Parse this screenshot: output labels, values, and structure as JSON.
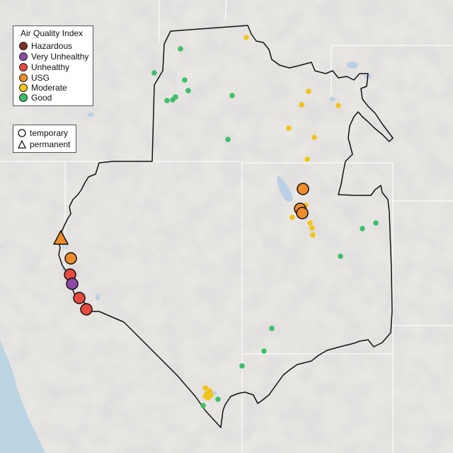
{
  "legend": {
    "title": "Air Quality Index",
    "categories": [
      {
        "label": "Hazardous",
        "color": "#7e2f25"
      },
      {
        "label": "Very Unhealthy",
        "color": "#8e4aa8"
      },
      {
        "label": "Unhealthy",
        "color": "#e8493e"
      },
      {
        "label": "USG",
        "color": "#f08c2b"
      },
      {
        "label": "Moderate",
        "color": "#f2c41b"
      },
      {
        "label": "Good",
        "color": "#3dbf6a"
      }
    ]
  },
  "monitor_types": {
    "temporary": "temporary",
    "permanent": "permanent"
  },
  "colors": {
    "land": "#e9e7e4",
    "ocean": "#bcd3e3",
    "water": "#bad0e6",
    "boundary": "#111111",
    "state_line": "#ffffff"
  },
  "monitors": {
    "temporary_aqi": [
      "USG",
      "USG",
      "USG",
      "USG",
      "Unhealthy",
      "Very Unhealthy",
      "Unhealthy",
      "Unhealthy"
    ],
    "permanent_aqi": [
      "USG"
    ],
    "small_moderate_count": 18,
    "small_good_count": 20
  }
}
